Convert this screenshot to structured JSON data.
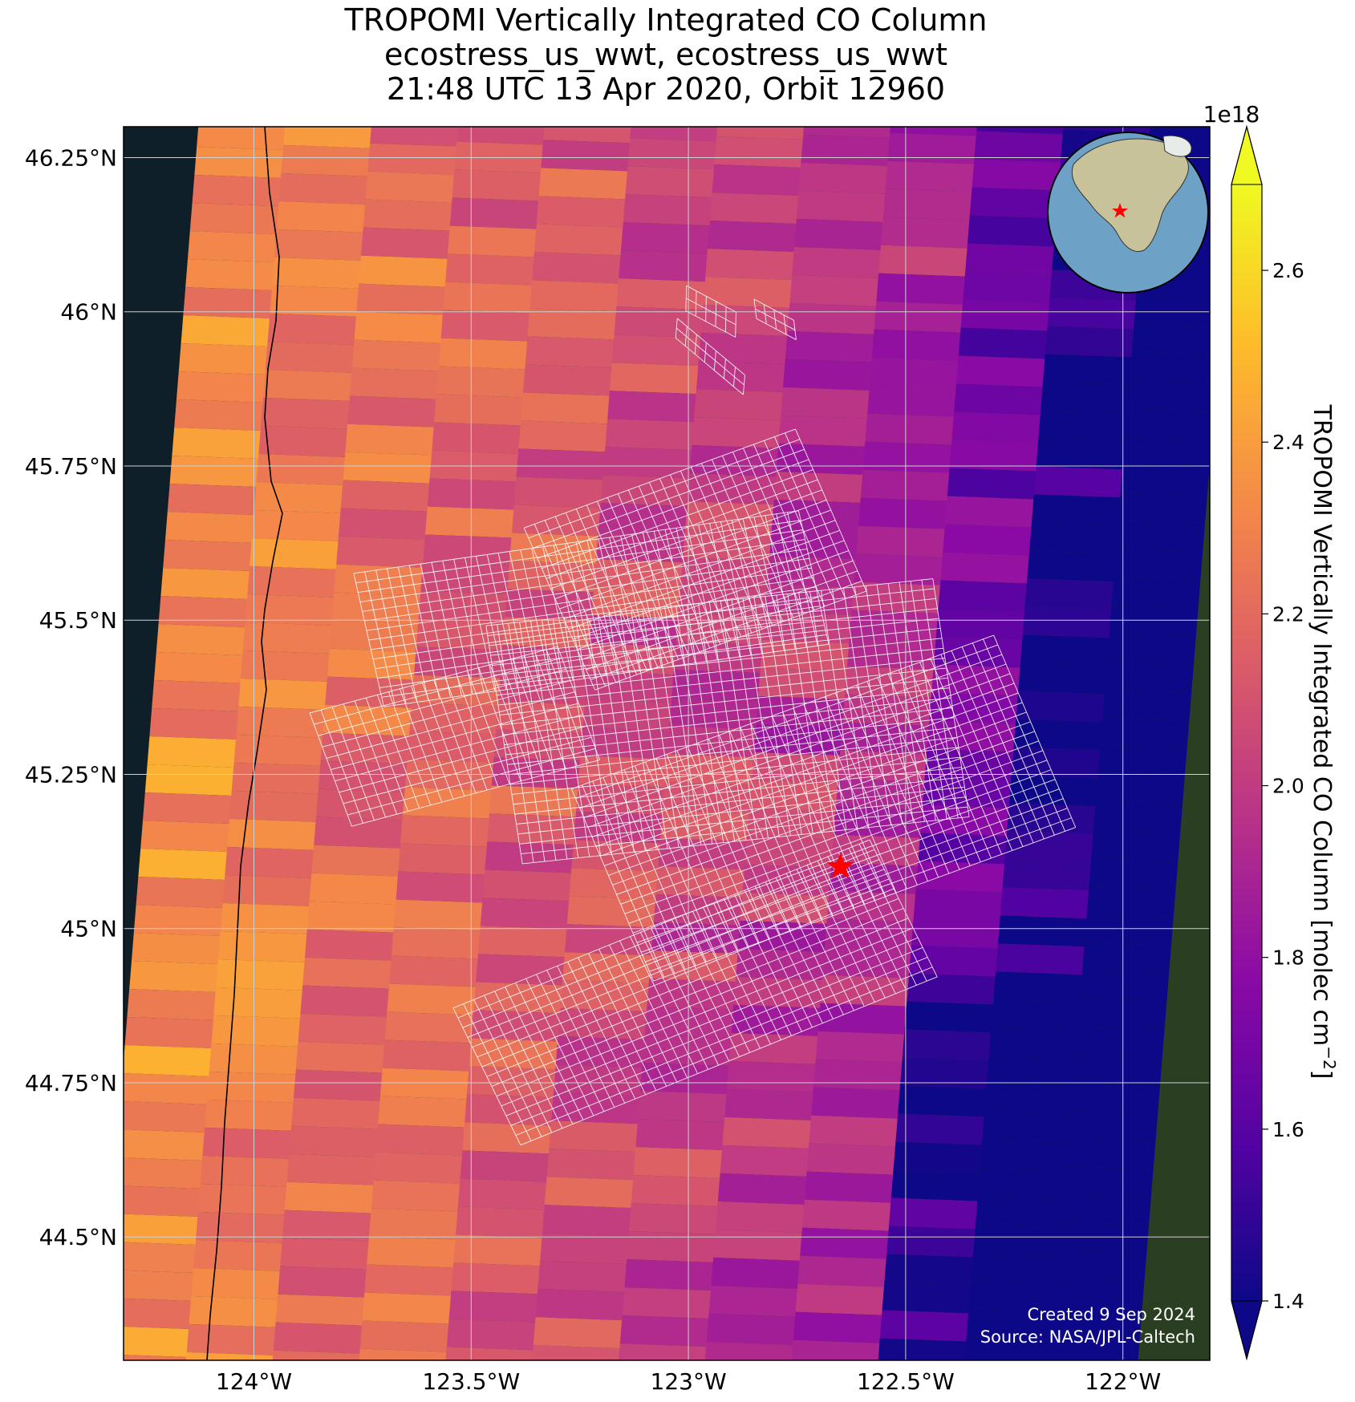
{
  "title": {
    "line1": "TROPOMI Vertically Integrated CO Column",
    "line2": "ecostress_us_wwt, ecostress_us_wwt",
    "line3": "21:48 UTC 13 Apr 2020, Orbit 12960"
  },
  "map": {
    "extent": {
      "lon_min": -124.3,
      "lon_max": -121.8,
      "lat_min": 44.3,
      "lat_max": 46.3
    },
    "lat_ticks": [
      {
        "value": 46.25,
        "label": "46.25°N"
      },
      {
        "value": 46.0,
        "label": "46°N"
      },
      {
        "value": 45.75,
        "label": "45.75°N"
      },
      {
        "value": 45.5,
        "label": "45.5°N"
      },
      {
        "value": 45.25,
        "label": "45.25°N"
      },
      {
        "value": 45.0,
        "label": "45°N"
      },
      {
        "value": 44.75,
        "label": "44.75°N"
      },
      {
        "value": 44.5,
        "label": "44.5°N"
      }
    ],
    "lon_ticks": [
      {
        "value": -124.0,
        "label": "124°W"
      },
      {
        "value": -123.5,
        "label": "123.5°W"
      },
      {
        "value": -123.0,
        "label": "123°W"
      },
      {
        "value": -122.5,
        "label": "122.5°W"
      },
      {
        "value": -122.0,
        "label": "122°W"
      }
    ],
    "site_marker": {
      "lon": -122.65,
      "lat": 45.1,
      "color": "#ff0000"
    },
    "credit_line1": "Created 9 Sep 2024",
    "credit_line2": "Source: NASA/JPL-Caltech",
    "colors": {
      "ocean": "#0f1f2a",
      "land": "#2a3f22",
      "grid": "#d0d0d0",
      "coastline": "#000000",
      "footprint_outline": "#ffffff"
    }
  },
  "colorbar": {
    "label": "TROPOMI Vertically Integrated CO Column [molec cm",
    "label_superscript": "−2",
    "label_close": "]",
    "exponent": "1e18",
    "range": [
      1.4,
      2.7
    ],
    "ticks": [
      "1.4",
      "1.6",
      "1.8",
      "2.0",
      "2.2",
      "2.4",
      "2.6"
    ],
    "colormap": "plasma",
    "extend": "both"
  }
}
